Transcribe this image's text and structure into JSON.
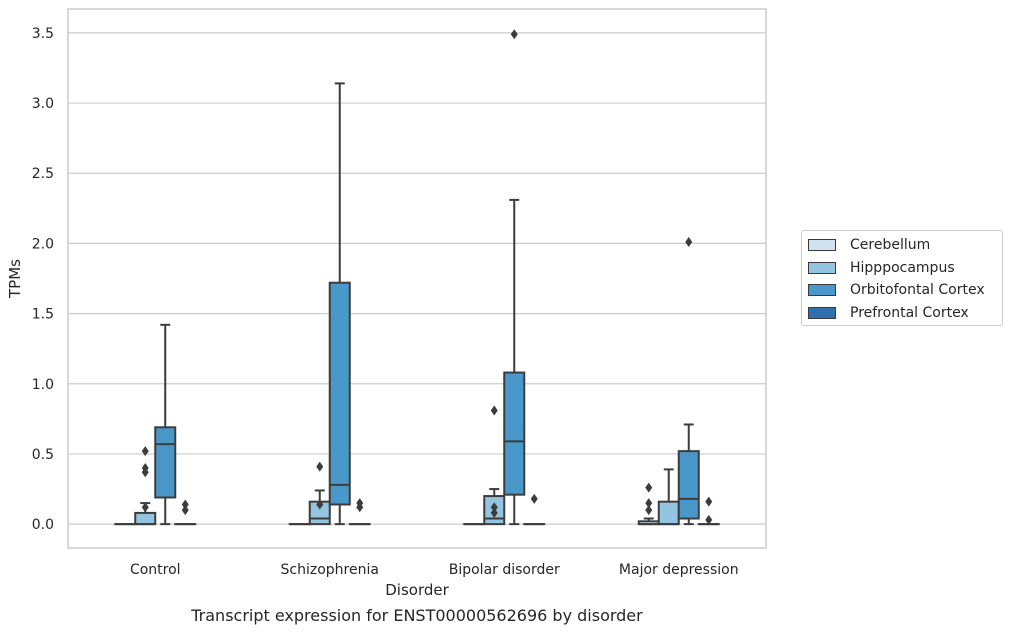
{
  "caption": "Transcript expression for ENST00000562696 by disorder",
  "chart_data": {
    "type": "box",
    "xlabel": "Disorder",
    "ylabel": "TPMs",
    "ylim": [
      -0.17,
      3.67
    ],
    "yticks": [
      0.0,
      0.5,
      1.0,
      1.5,
      2.0,
      2.5,
      3.0,
      3.5
    ],
    "ytick_labels": [
      "0.0",
      "0.5",
      "1.0",
      "1.5",
      "2.0",
      "2.5",
      "3.0",
      "3.5"
    ],
    "grid": "horizontal",
    "legend_position": "right",
    "categories": [
      "Control",
      "Schizophrenia",
      "Bipolar disorder",
      "Major depression"
    ],
    "series": [
      {
        "name": "Cerebellum",
        "color": "#d0e1f2",
        "boxes": [
          {
            "q1": 0,
            "median": 0,
            "q3": 0,
            "whisker_low": 0,
            "whisker_high": 0,
            "outliers": []
          },
          {
            "q1": 0,
            "median": 0,
            "q3": 0,
            "whisker_low": 0,
            "whisker_high": 0,
            "outliers": []
          },
          {
            "q1": 0,
            "median": 0,
            "q3": 0,
            "whisker_low": 0,
            "whisker_high": 0,
            "outliers": []
          },
          {
            "q1": 0,
            "median": 0,
            "q3": 0.02,
            "whisker_low": 0,
            "whisker_high": 0.04,
            "outliers": [
              0.1,
              0.15,
              0.26
            ]
          }
        ]
      },
      {
        "name": "Hipppocampus",
        "color": "#94c4df",
        "boxes": [
          {
            "q1": 0,
            "median": 0,
            "q3": 0.08,
            "whisker_low": 0,
            "whisker_high": 0.15,
            "outliers": [
              0.12,
              0.37,
              0.4,
              0.52
            ]
          },
          {
            "q1": 0,
            "median": 0.04,
            "q3": 0.16,
            "whisker_low": 0,
            "whisker_high": 0.24,
            "outliers": [
              0.14,
              0.41
            ]
          },
          {
            "q1": 0,
            "median": 0.04,
            "q3": 0.2,
            "whisker_low": 0,
            "whisker_high": 0.25,
            "outliers": [
              0.08,
              0.12,
              0.81
            ]
          },
          {
            "q1": 0,
            "median": 0,
            "q3": 0.16,
            "whisker_low": 0,
            "whisker_high": 0.39,
            "outliers": []
          }
        ]
      },
      {
        "name": "Orbitofontal Cortex",
        "color": "#4a98c9",
        "boxes": [
          {
            "q1": 0.19,
            "median": 0.57,
            "q3": 0.69,
            "whisker_low": 0,
            "whisker_high": 1.42,
            "outliers": []
          },
          {
            "q1": 0.14,
            "median": 0.28,
            "q3": 1.72,
            "whisker_low": 0,
            "whisker_high": 3.14,
            "outliers": []
          },
          {
            "q1": 0.21,
            "median": 0.59,
            "q3": 1.08,
            "whisker_low": 0,
            "whisker_high": 2.31,
            "outliers": [
              3.49
            ]
          },
          {
            "q1": 0.04,
            "median": 0.18,
            "q3": 0.52,
            "whisker_low": 0,
            "whisker_high": 0.71,
            "outliers": [
              2.01
            ]
          }
        ]
      },
      {
        "name": "Prefrontal Cortex",
        "color": "#2e6fae",
        "boxes": [
          {
            "q1": 0,
            "median": 0,
            "q3": 0,
            "whisker_low": 0,
            "whisker_high": 0,
            "outliers": [
              0.1,
              0.14
            ]
          },
          {
            "q1": 0,
            "median": 0,
            "q3": 0,
            "whisker_low": 0,
            "whisker_high": 0,
            "outliers": [
              0.12,
              0.15
            ]
          },
          {
            "q1": 0,
            "median": 0,
            "q3": 0,
            "whisker_low": 0,
            "whisker_high": 0,
            "outliers": [
              0.18
            ]
          },
          {
            "q1": 0,
            "median": 0,
            "q3": 0,
            "whisker_low": 0,
            "whisker_high": 0,
            "outliers": [
              0.03,
              0.16
            ]
          }
        ]
      }
    ]
  }
}
